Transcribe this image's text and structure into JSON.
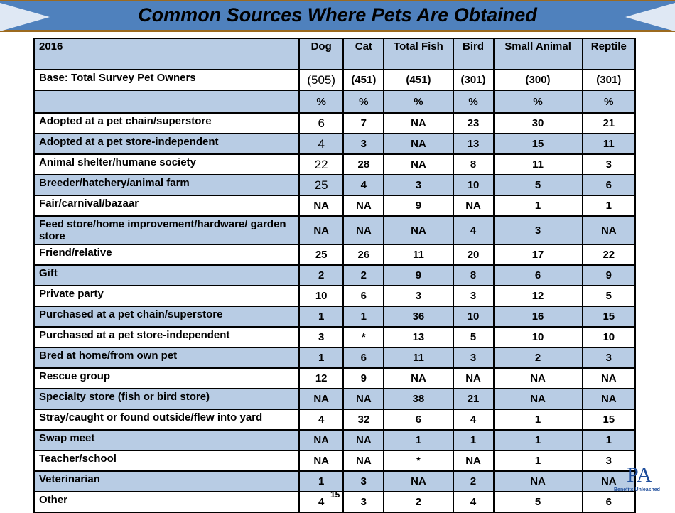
{
  "title": "Common Sources Where Pets Are Obtained",
  "table": {
    "header": [
      "2016",
      "Dog",
      "Cat",
      "Total Fish",
      "Bird",
      "Small Animal",
      "Reptile"
    ],
    "base": [
      "Base: Total Survey Pet Owners",
      "(505)",
      "(451)",
      "(451)",
      "(301)",
      "(300)",
      "(301)"
    ],
    "units": [
      "",
      "%",
      "%",
      "%",
      "%",
      "%",
      "%"
    ],
    "rows": [
      [
        "Adopted at a pet chain/superstore",
        "6",
        "7",
        "NA",
        "23",
        "30",
        "21"
      ],
      [
        "Adopted at a pet store-independent",
        "4",
        "3",
        "NA",
        "13",
        "15",
        "11"
      ],
      [
        "Animal shelter/humane society",
        "22",
        "28",
        "NA",
        "8",
        "11",
        "3"
      ],
      [
        "Breeder/hatchery/animal farm",
        "25",
        "4",
        "3",
        "10",
        "5",
        "6"
      ],
      [
        "Fair/carnival/bazaar",
        "NA",
        "NA",
        "9",
        "NA",
        "1",
        "1"
      ],
      [
        "Feed store/home improvement/hardware/ garden store",
        "NA",
        "NA",
        "NA",
        "4",
        "3",
        "NA"
      ],
      [
        "Friend/relative",
        "25",
        "26",
        "11",
        "20",
        "17",
        "22"
      ],
      [
        "Gift",
        "2",
        "2",
        "9",
        "8",
        "6",
        "9"
      ],
      [
        "Private party",
        "10",
        "6",
        "3",
        "3",
        "12",
        "5"
      ],
      [
        "Purchased at a pet chain/superstore",
        "1",
        "1",
        "36",
        "10",
        "16",
        "15"
      ],
      [
        "Purchased at a pet store-independent",
        "3",
        "*",
        "13",
        "5",
        "10",
        "10"
      ],
      [
        "Bred at home/from own pet",
        "1",
        "6",
        "11",
        "3",
        "2",
        "3"
      ],
      [
        "Rescue group",
        "12",
        "9",
        "NA",
        "NA",
        "NA",
        "NA"
      ],
      [
        "Specialty store (fish or bird store)",
        "NA",
        "NA",
        "38",
        "21",
        "NA",
        "NA"
      ],
      [
        "Stray/caught or found outside/flew into yard",
        "4",
        "32",
        "6",
        "4",
        "1",
        "15"
      ],
      [
        "Swap meet",
        "NA",
        "NA",
        "1",
        "1",
        "1",
        "1"
      ],
      [
        "Teacher/school",
        "NA",
        "NA",
        "*",
        "NA",
        "1",
        "3"
      ],
      [
        "Veterinarian",
        "1",
        "3",
        "NA",
        "2",
        "NA",
        "NA"
      ],
      [
        "Other",
        "4",
        "3",
        "2",
        "4",
        "5",
        "6"
      ]
    ]
  },
  "page_number": "15",
  "logo": {
    "text": "APPA",
    "tagline": "Benefits Unleashed"
  },
  "colors": {
    "banner": "#4f81bd",
    "band": "#b8cce4",
    "border": "#9c6a1f"
  }
}
